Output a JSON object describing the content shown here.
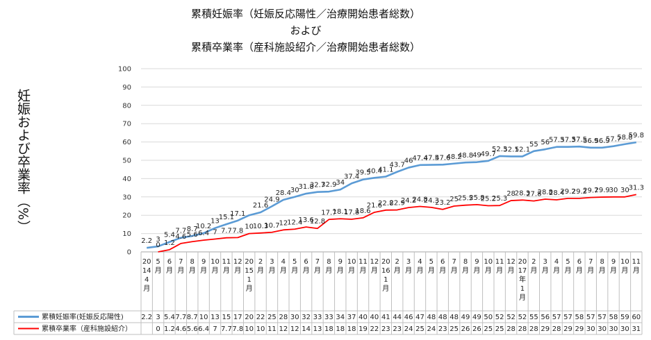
{
  "chart_data": {
    "type": "line",
    "title_lines": [
      "累積妊娠率（妊娠反応陽性／治療開始患者総数）",
      "および",
      "累積卒業率（産科施設紹介／治療開始患者総数）"
    ],
    "ylabel": "妊娠および卒業率（%）",
    "ylim": [
      0,
      100
    ],
    "yticks": [
      "0",
      "10",
      "20",
      "30",
      "40",
      "50",
      "60",
      "70",
      "80",
      "90",
      "100"
    ],
    "categories": [
      [
        "20",
        "14",
        "4",
        "月"
      ],
      [
        "5",
        "月"
      ],
      [
        "6",
        "月"
      ],
      [
        "7",
        "月"
      ],
      [
        "8",
        "月"
      ],
      [
        "9",
        "月"
      ],
      [
        "10",
        "月"
      ],
      [
        "11",
        "月"
      ],
      [
        "12",
        "月"
      ],
      [
        "20",
        "15",
        "1",
        "月"
      ],
      [
        "2",
        "月"
      ],
      [
        "3",
        "月"
      ],
      [
        "4",
        "月"
      ],
      [
        "5",
        "月"
      ],
      [
        "6",
        "月"
      ],
      [
        "7",
        "月"
      ],
      [
        "8",
        "月"
      ],
      [
        "9",
        "月"
      ],
      [
        "10",
        "月"
      ],
      [
        "11",
        "月"
      ],
      [
        "12",
        "月"
      ],
      [
        "20",
        "16",
        "1",
        "月"
      ],
      [
        "2",
        "月"
      ],
      [
        "3",
        "月"
      ],
      [
        "4",
        "月"
      ],
      [
        "5",
        "月"
      ],
      [
        "6",
        "月"
      ],
      [
        "7",
        "月"
      ],
      [
        "8",
        "月"
      ],
      [
        "9",
        "月"
      ],
      [
        "10",
        "月"
      ],
      [
        "11",
        "月"
      ],
      [
        "12",
        "月"
      ],
      [
        "20",
        "17",
        "年",
        "1",
        "月"
      ],
      [
        "2",
        "月"
      ],
      [
        "3",
        "月"
      ],
      [
        "4",
        "月"
      ],
      [
        "5",
        "月"
      ],
      [
        "6",
        "月"
      ],
      [
        "7",
        "月"
      ],
      [
        "8",
        "月"
      ],
      [
        "9",
        "月"
      ],
      [
        "10",
        "月"
      ],
      [
        "11",
        "月"
      ]
    ],
    "series": [
      {
        "name": "累積妊娠率(妊娠反応陽性)",
        "color": "#5b9bd5",
        "values": [
          2.2,
          3,
          5.4,
          7.7,
          8.7,
          10.2,
          13,
          15.1,
          17.1,
          20,
          21.6,
          24.9,
          28.4,
          30,
          31.8,
          32.7,
          32.9,
          34,
          37.4,
          39.5,
          40.4,
          41.1,
          43.7,
          46,
          47.4,
          47.5,
          47.6,
          48.2,
          48.8,
          49,
          49.7,
          52.3,
          52.1,
          52.1,
          55,
          56,
          57.3,
          57.3,
          57.5,
          56.9,
          56.9,
          57.7,
          58.8,
          59.8
        ],
        "labels": [
          "2.2",
          "3",
          "5.4",
          "7.7",
          "8.7",
          "10.2",
          "13",
          "15.1",
          "17.1",
          "",
          "21.6",
          "24.9",
          "28.4",
          "30",
          "31.8",
          "32.7",
          "32.9",
          "34",
          "37.4",
          "39.5",
          "40.4",
          "41.1",
          "43.7",
          "46",
          "47.4",
          "47.5",
          "47.6",
          "48.2",
          "48.8",
          "49",
          "49.7",
          "52.3",
          "52.1",
          "52.1",
          "55",
          "56",
          "57.3",
          "57.3",
          "57.5",
          "56.9",
          "56.9",
          "57.7",
          "58.8",
          "59.8"
        ],
        "table": [
          "2.2",
          "3",
          "5.4",
          "7.7",
          "8.7",
          "10",
          "13",
          "15",
          "17",
          "20",
          "22",
          "25",
          "28",
          "30",
          "32",
          "33",
          "33",
          "34",
          "37",
          "40",
          "40",
          "41",
          "44",
          "46",
          "47",
          "48",
          "48",
          "48",
          "49",
          "49",
          "50",
          "52",
          "52",
          "52",
          "55",
          "56",
          "57",
          "57",
          "58",
          "57",
          "57",
          "58",
          "59",
          "60"
        ]
      },
      {
        "name": "累積卒業率（産科施設紹介）",
        "color": "#ff0000",
        "values": [
          null,
          0,
          1.2,
          4.6,
          5.6,
          6.4,
          7,
          7.7,
          7.8,
          10,
          10.3,
          10.7,
          12,
          12.4,
          13.6,
          12.8,
          17.7,
          18.1,
          17.8,
          18.6,
          21.6,
          22.8,
          22.9,
          24.2,
          24.8,
          24.3,
          23.2,
          25,
          25.5,
          25.8,
          25.2,
          25.3,
          28,
          28.3,
          27.8,
          28.8,
          28.4,
          29.2,
          29.2,
          29.7,
          29.9,
          30,
          30,
          31.3
        ],
        "labels": [
          "",
          "0",
          "1.2",
          "4.6",
          "5.6",
          "6.4",
          "7",
          "7.7",
          "7.8",
          "10",
          "10.3",
          "10.7",
          "12",
          "12.4",
          "13.6",
          "12.8",
          "17.7",
          "18.1",
          "17.8",
          "18.6",
          "21.6",
          "22.8",
          "22.9",
          "24.2",
          "24.8",
          "24.3",
          "23.2",
          "25",
          "25.5",
          "25.8",
          "25.2",
          "25.3",
          "28",
          "28.3",
          "27.8",
          "28.8",
          "28.4",
          "29.2",
          "29.2",
          "29.7",
          "29.9",
          "30",
          "30",
          "31.3"
        ],
        "table": [
          "",
          "0",
          "1.2",
          "4.6",
          "5.6",
          "6.4",
          "7",
          "7.7",
          "7.8",
          "10",
          "10",
          "11",
          "12",
          "12",
          "14",
          "13",
          "18",
          "18",
          "18",
          "19",
          "22",
          "23",
          "23",
          "24",
          "25",
          "24",
          "23",
          "25",
          "26",
          "26",
          "25",
          "25",
          "28",
          "28",
          "28",
          "29",
          "28",
          "29",
          "29",
          "30",
          "30",
          "30",
          "30",
          "31"
        ]
      }
    ],
    "grid": true,
    "legend": "data-table-bottom"
  }
}
